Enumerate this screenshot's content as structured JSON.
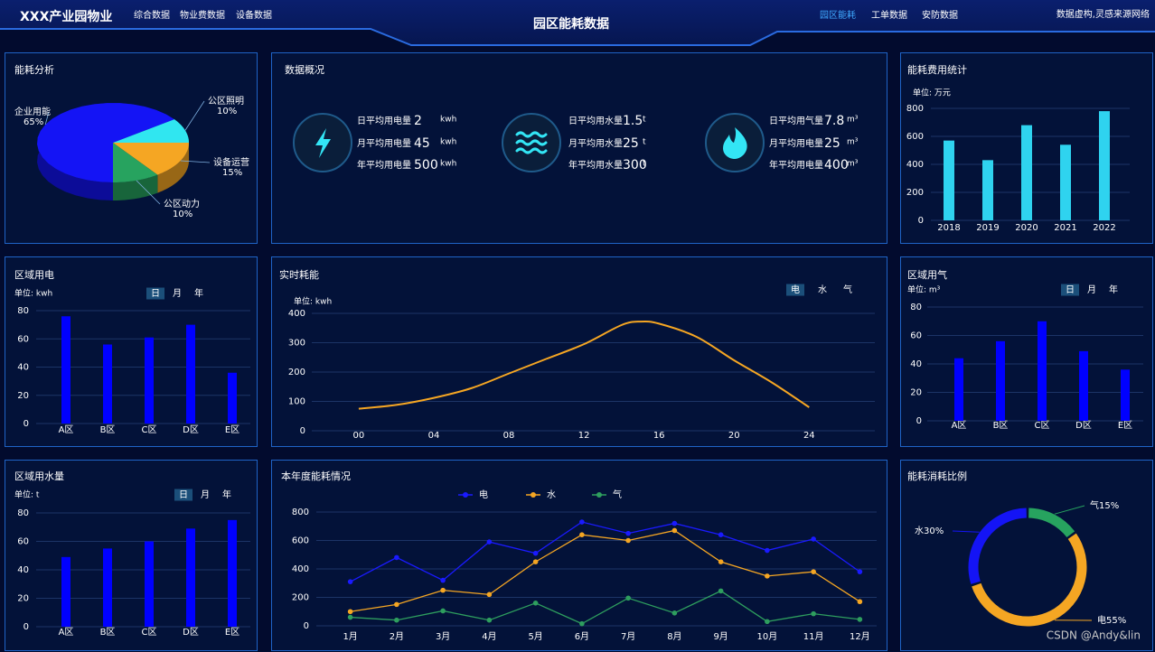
{
  "header": {
    "title": "XXX产业园物业",
    "nav_left": [
      "综合数据",
      "物业费数据",
      "设备数据"
    ],
    "center_title": "园区能耗数据",
    "nav_right": [
      "园区能耗",
      "工单数据",
      "安防数据"
    ],
    "note": "数据虚构,灵感来源网络"
  },
  "overview": {
    "title": "数据概况",
    "groups": [
      {
        "items": [
          {
            "label": "日平均用电量",
            "value": 2,
            "unit": "kwh"
          },
          {
            "label": "月平均用电量",
            "value": 45,
            "unit": "kwh"
          },
          {
            "label": "年平均用电量",
            "value": 500,
            "unit": "kwh"
          }
        ]
      },
      {
        "items": [
          {
            "label": "日平均用水量",
            "value": 1.5,
            "unit": "t"
          },
          {
            "label": "月平均用水量",
            "value": 25,
            "unit": "t"
          },
          {
            "label": "年平均用水量",
            "value": 300,
            "unit": "t"
          }
        ]
      },
      {
        "items": [
          {
            "label": "日平均用气量",
            "value": 7.8,
            "unit": "m³"
          },
          {
            "label": "月平均用电量",
            "value": 25,
            "unit": "m³"
          },
          {
            "label": "年平均用电量",
            "value": 400,
            "unit": "m³"
          }
        ]
      }
    ]
  },
  "chart_data": [
    {
      "type": "pie",
      "title": "能耗分析",
      "donut": false,
      "categories": [
        "企业用能",
        "公区照明",
        "设备运营",
        "公区动力"
      ],
      "values": [
        65,
        10,
        15,
        10
      ],
      "value_labels": [
        "65%",
        "10%",
        "15%",
        "10%"
      ],
      "colors": [
        "#1414f5",
        "#30e6f0",
        "#f5a623",
        "#27a35f"
      ]
    },
    {
      "type": "bar",
      "title": "能耗费用统计",
      "unit_label": "单位: 万元",
      "categories": [
        "2018",
        "2019",
        "2020",
        "2021",
        "2022"
      ],
      "values": [
        570,
        430,
        680,
        540,
        780
      ],
      "color": "#2fd3ef",
      "ylim": [
        0,
        800
      ],
      "yticks": [
        0,
        200,
        400,
        600,
        800
      ],
      "grid": true
    },
    {
      "type": "bar",
      "title": "区域用电",
      "unit_label": "单位: kwh",
      "toggles": [
        "日",
        "月",
        "年"
      ],
      "categories": [
        "A区",
        "B区",
        "C区",
        "D区",
        "E区"
      ],
      "values": [
        76,
        56,
        61,
        70,
        36
      ],
      "color": "#0000ff",
      "ylim": [
        0,
        80
      ],
      "yticks": [
        0,
        20,
        40,
        60,
        80
      ],
      "grid": true
    },
    {
      "type": "line",
      "title": "实时耗能",
      "unit_label": "单位: kwh",
      "toggles": [
        "电",
        "水",
        "气"
      ],
      "smooth": true,
      "x": [
        0,
        2,
        4,
        6,
        8,
        10,
        12,
        14,
        15,
        16,
        18,
        20,
        22,
        24
      ],
      "values": [
        75,
        88,
        112,
        145,
        195,
        245,
        295,
        360,
        372,
        365,
        320,
        240,
        165,
        80
      ],
      "color": "#f5a623",
      "xlim": [
        -2.5,
        27.5
      ],
      "xticks": [
        {
          "value": 0,
          "label": "00"
        },
        {
          "value": 4,
          "label": "04"
        },
        {
          "value": 8,
          "label": "08"
        },
        12,
        16,
        20,
        24
      ],
      "ylim": [
        0,
        400
      ],
      "yticks": [
        0,
        100,
        200,
        300,
        400
      ],
      "grid": true
    },
    {
      "type": "bar",
      "title": "区域用气",
      "unit_label": "单位: m³",
      "toggles": [
        "日",
        "月",
        "年"
      ],
      "categories": [
        "A区",
        "B区",
        "C区",
        "D区",
        "E区"
      ],
      "values": [
        44,
        56,
        70,
        49,
        36
      ],
      "color": "#0000ff",
      "ylim": [
        0,
        80
      ],
      "yticks": [
        0,
        20,
        40,
        60,
        80
      ],
      "grid": true
    },
    {
      "type": "bar",
      "title": "区域用水量",
      "unit_label": "单位: t",
      "toggles": [
        "日",
        "月",
        "年"
      ],
      "categories": [
        "A区",
        "B区",
        "C区",
        "D区",
        "E区"
      ],
      "values": [
        49,
        55,
        60,
        69,
        75
      ],
      "color": "#0000ff",
      "ylim": [
        0,
        80
      ],
      "yticks": [
        0,
        20,
        40,
        60,
        80
      ],
      "grid": true
    },
    {
      "type": "line",
      "title": "本年度能耗情况",
      "smooth": false,
      "markers": true,
      "categories": [
        "1月",
        "2月",
        "3月",
        "4月",
        "5月",
        "6月",
        "7月",
        "8月",
        "9月",
        "10月",
        "11月",
        "12月"
      ],
      "series": [
        {
          "name": "电",
          "color": "#1a1aff",
          "values": [
            310,
            480,
            320,
            590,
            510,
            730,
            650,
            720,
            640,
            530,
            610,
            380
          ]
        },
        {
          "name": "水",
          "color": "#f5a623",
          "values": [
            100,
            150,
            250,
            220,
            450,
            640,
            600,
            670,
            450,
            350,
            380,
            170
          ]
        },
        {
          "name": "气",
          "color": "#2e9e5e",
          "values": [
            60,
            40,
            105,
            40,
            160,
            15,
            195,
            90,
            245,
            30,
            85,
            45
          ]
        }
      ],
      "ylim": [
        0,
        800
      ],
      "yticks": [
        0,
        200,
        400,
        600,
        800
      ],
      "grid": true
    },
    {
      "type": "pie",
      "title": "能耗消耗比例",
      "donut": true,
      "categories": [
        "电",
        "水",
        "气"
      ],
      "values": [
        55,
        30,
        15
      ],
      "value_labels": [
        "55%",
        "30%",
        "15%"
      ],
      "colors": [
        "#f5a623",
        "#1414f5",
        "#27a35f"
      ]
    }
  ],
  "watermark": "CSDN @Andy&lin"
}
